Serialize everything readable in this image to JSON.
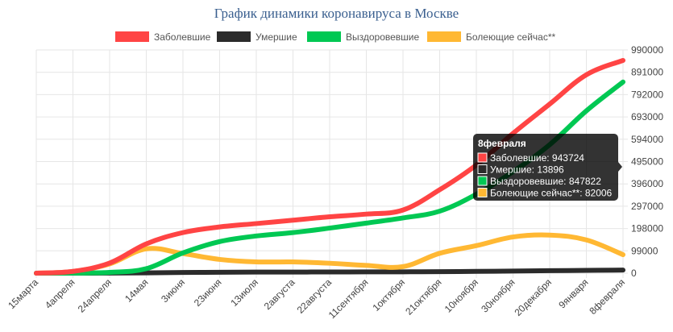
{
  "chart_data": {
    "type": "line",
    "title": "График динамики коронавируса в Москве",
    "categories": [
      "15марта",
      "4апреля",
      "24апреля",
      "14мая",
      "3июня",
      "23июня",
      "13июля",
      "2августа",
      "22августа",
      "11сентября",
      "1октября",
      "21октября",
      "10ноября",
      "30ноября",
      "20декабря",
      "9января",
      "8февраля"
    ],
    "y_ticks": [
      "0",
      "99000",
      "198000",
      "297000",
      "396000",
      "495000",
      "594000",
      "693000",
      "792000",
      "891000",
      "990000"
    ],
    "ylim": [
      0,
      990000
    ],
    "y_axis_position": "right",
    "grid": true,
    "legend_position": "top",
    "series": [
      {
        "name": "Заболевшие",
        "color": "#ff4444",
        "values": [
          0,
          8000,
          45000,
          130000,
          180000,
          205000,
          220000,
          235000,
          250000,
          262000,
          280000,
          370000,
          480000,
          620000,
          750000,
          880000,
          943724
        ]
      },
      {
        "name": "Умершие",
        "color": "#2b2b2b",
        "values": [
          0,
          50,
          500,
          1500,
          3000,
          4200,
          4700,
          5000,
          5300,
          5600,
          6000,
          6800,
          8000,
          9300,
          11000,
          12500,
          13896
        ]
      },
      {
        "name": "Выздоровевшие",
        "color": "#00c853",
        "values": [
          0,
          400,
          3500,
          20000,
          90000,
          140000,
          165000,
          180000,
          200000,
          222000,
          245000,
          275000,
          350000,
          450000,
          570000,
          720000,
          847822
        ]
      },
      {
        "name": "Болеющие сейчас**",
        "color": "#ffb833",
        "values": [
          0,
          7500,
          41000,
          108000,
          87000,
          61000,
          50000,
          50000,
          44000,
          34500,
          29000,
          88200,
          122000,
          160700,
          169000,
          147500,
          82006
        ]
      }
    ],
    "tooltip": {
      "title": "8февраля",
      "items": [
        {
          "label": "Заболевшие: 943724",
          "color": "#ff4444"
        },
        {
          "label": "Умершие: 13896",
          "color": "#2b2b2b"
        },
        {
          "label": "Выздоровевшие: 847822",
          "color": "#00c853"
        },
        {
          "label": "Болеющие сейчас**: 82006",
          "color": "#ffb833"
        }
      ]
    }
  }
}
